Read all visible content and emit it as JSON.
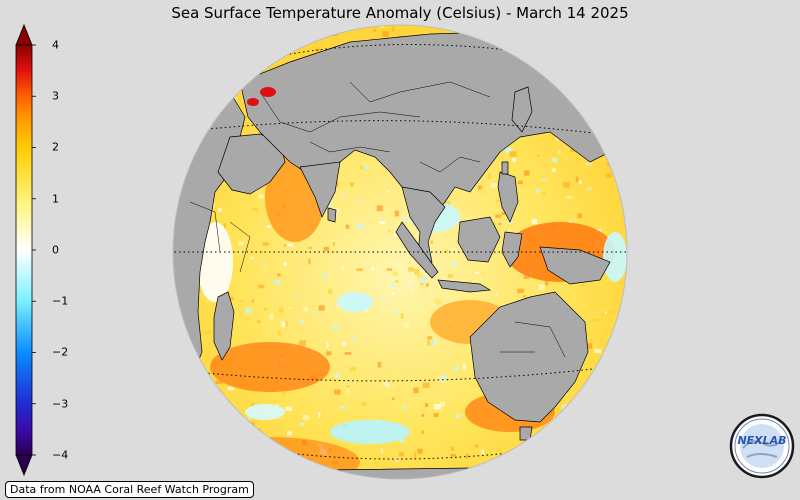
{
  "title": "Sea Surface Temperature Anomaly (Celsius) - March 14 2025",
  "colorbar": {
    "ticks": [
      "4",
      "3",
      "2",
      "1",
      "0",
      "−1",
      "−2",
      "−3",
      "−4"
    ],
    "colors": [
      "#2a004f",
      "#1f2fd6",
      "#0a8cff",
      "#7ef2ff",
      "#ffffff",
      "#fff47a",
      "#ffcc00",
      "#ff7a00",
      "#e01010",
      "#8b0000"
    ]
  },
  "source": "Data from NOAA Coral Reef Watch Program",
  "logo": {
    "text": "NEXLAB",
    "icon": "nexlab-globe-logo"
  },
  "map": {
    "land_color": "#a9a9a9",
    "ocean_base_color": "#fff2a0"
  }
}
